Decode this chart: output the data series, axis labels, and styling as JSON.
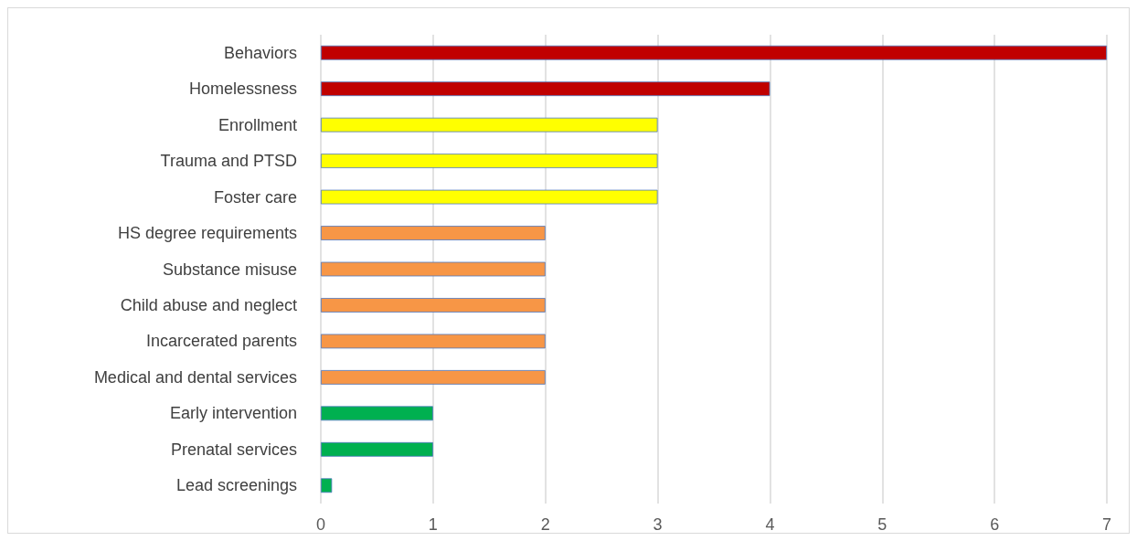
{
  "chart_data": {
    "type": "bar",
    "orientation": "horizontal",
    "categories": [
      "Behaviors",
      "Homelessness",
      "Enrollment",
      "Trauma and PTSD",
      "Foster care",
      "HS degree requirements",
      "Substance misuse",
      "Child abuse and neglect",
      "Incarcerated parents",
      "Medical and dental services",
      "Early intervention",
      "Prenatal services",
      "Lead screenings"
    ],
    "values": [
      7,
      4,
      3,
      3,
      3,
      2,
      2,
      2,
      2,
      2,
      1,
      1,
      0.1
    ],
    "colors": [
      "#c00000",
      "#c00000",
      "#ffff00",
      "#ffff00",
      "#ffff00",
      "#f79646",
      "#f79646",
      "#f79646",
      "#f79646",
      "#f79646",
      "#00b050",
      "#00b050",
      "#00b050"
    ],
    "xlim": [
      0,
      7
    ],
    "xticks": [
      0,
      1,
      2,
      3,
      4,
      5,
      6,
      7
    ],
    "grid": "x"
  }
}
